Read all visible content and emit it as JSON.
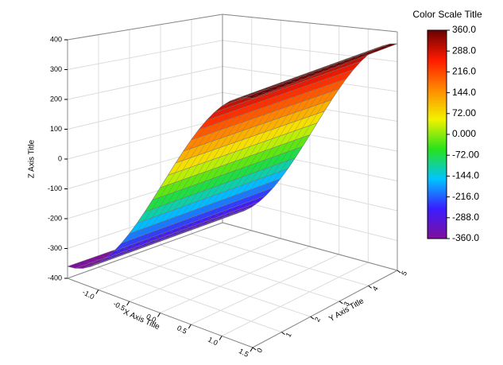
{
  "chart_data": {
    "type": "surface",
    "xlabel": "X Axis Title",
    "ylabel": "Y Axis Title",
    "zlabel": "Z Axis Title",
    "colorbar_title": "Color Scale Title",
    "x": [
      -1.5,
      -1.375,
      -1.25,
      -1.125,
      -1.0,
      -0.875,
      -0.75,
      -0.625,
      -0.5,
      -0.375,
      -0.25,
      -0.125,
      0,
      0.125,
      0.25,
      0.375,
      0.5,
      0.625,
      0.75,
      0.875,
      1.0,
      1.125,
      1.25,
      1.375,
      1.5
    ],
    "z": [
      -360,
      -356.9,
      -347.7,
      -332.6,
      -311.8,
      -285.6,
      -254.6,
      -219.2,
      -180,
      -137.8,
      -93.2,
      -47.0,
      0,
      47.0,
      93.2,
      137.8,
      180,
      219.2,
      254.6,
      285.6,
      311.8,
      332.6,
      347.7,
      356.9,
      360
    ],
    "xlim": [
      -1.5,
      1.5
    ],
    "ylim": [
      0,
      5
    ],
    "zlim": [
      -400,
      400
    ],
    "xticks": [
      {
        "value": -1.0,
        "label": "-1.0"
      },
      {
        "value": -0.5,
        "label": "-0.5"
      },
      {
        "value": 0,
        "label": "0.0"
      },
      {
        "value": 0.5,
        "label": "0.5"
      },
      {
        "value": 1.0,
        "label": "1.0"
      },
      {
        "value": 1.5,
        "label": "1.5"
      }
    ],
    "yticks": [
      0,
      1,
      2,
      3,
      4,
      5
    ],
    "zticks": [
      -400,
      -300,
      -200,
      -100,
      0,
      100,
      200,
      300,
      400
    ],
    "clim": [
      -360,
      360
    ],
    "cticks": [
      {
        "value": 360,
        "label": "360.0"
      },
      {
        "value": 288,
        "label": "288.0"
      },
      {
        "value": 216,
        "label": "216.0"
      },
      {
        "value": 144,
        "label": "144.0"
      },
      {
        "value": 72,
        "label": "72.00"
      },
      {
        "value": 0,
        "label": "0.000"
      },
      {
        "value": -72,
        "label": "-72.00"
      },
      {
        "value": -144,
        "label": "-144.0"
      },
      {
        "value": -216,
        "label": "-216.0"
      },
      {
        "value": -288,
        "label": "-288.0"
      },
      {
        "value": -360,
        "label": "-360.0"
      }
    ],
    "colormap": [
      "#800f9c",
      "#3a1cff",
      "#00c4ff",
      "#27e21b",
      "#f2f200",
      "#ff8a00",
      "#ff1a00",
      "#6a0000"
    ],
    "grid": true
  }
}
